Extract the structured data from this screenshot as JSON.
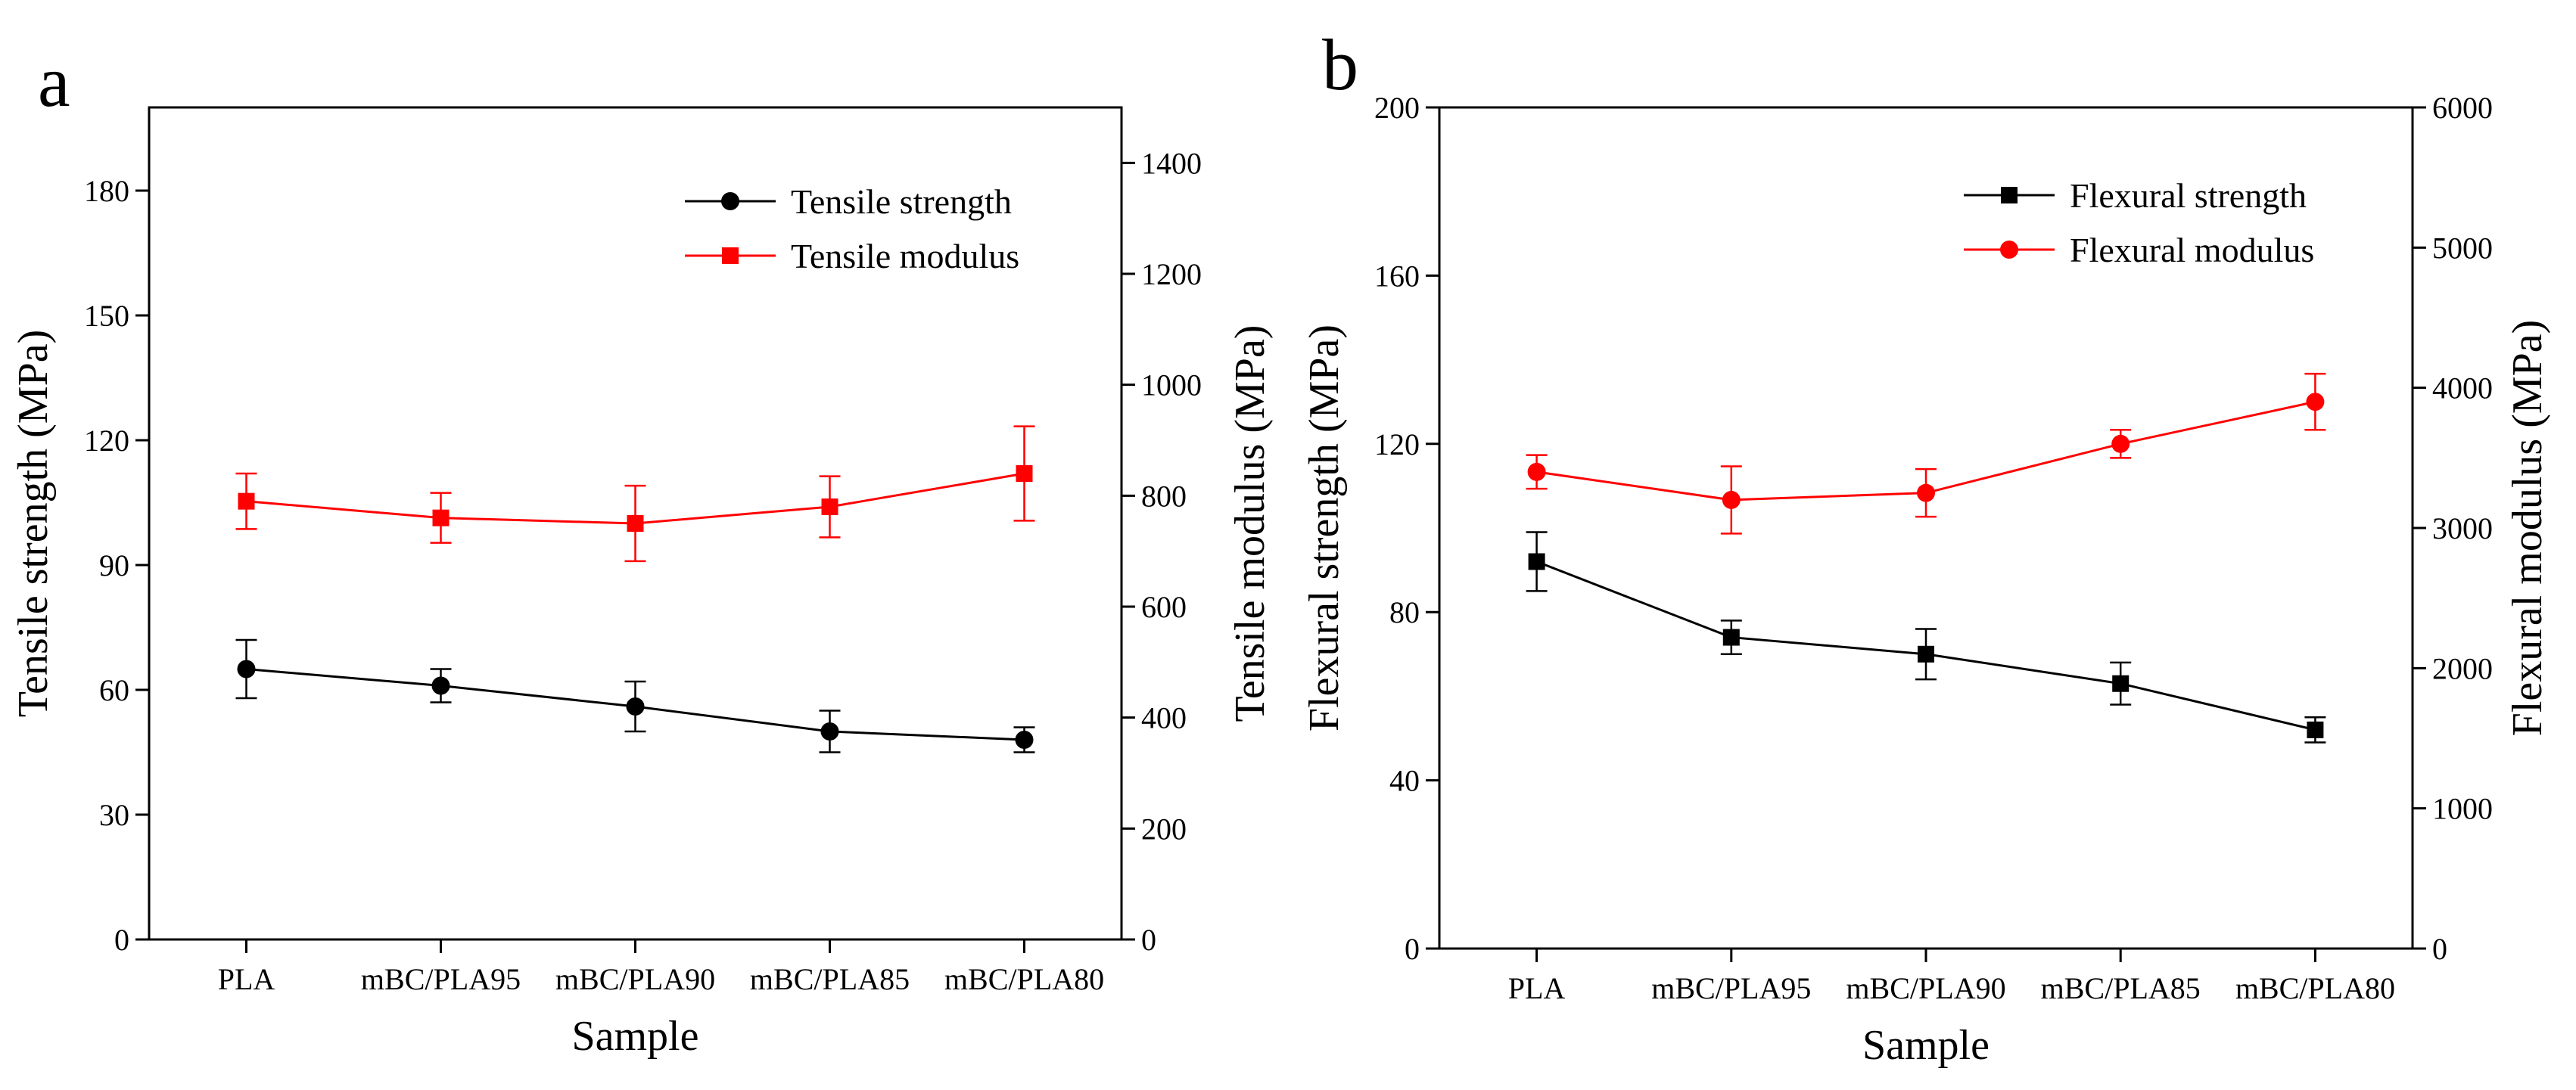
{
  "chart_data": [
    {
      "panel_label": "a",
      "type": "line",
      "categories": [
        "PLA",
        "mBC/PLA95",
        "mBC/PLA90",
        "mBC/PLA85",
        "mBC/PLA80"
      ],
      "xlabel": "Sample",
      "ylabel": "Tensile strength (MPa)",
      "y2label": "Tensile modulus (MPa)",
      "ylim": [
        0,
        200
      ],
      "yticks": [
        0,
        30,
        60,
        90,
        120,
        150,
        180
      ],
      "y2lim": [
        0,
        1500
      ],
      "y2ticks": [
        0,
        200,
        400,
        600,
        800,
        1000,
        1200,
        1400
      ],
      "legend_position": "top-right",
      "series": [
        {
          "name": "Tensile strength",
          "axis": "left",
          "marker": "circle",
          "color": "#000000",
          "values": [
            65,
            61,
            56,
            50,
            48
          ],
          "errors": [
            7,
            4,
            6,
            5,
            3
          ]
        },
        {
          "name": "Tensile modulus",
          "axis": "right",
          "marker": "square",
          "color": "#ff0000",
          "values": [
            790,
            760,
            750,
            780,
            840
          ],
          "errors": [
            50,
            45,
            68,
            55,
            85
          ]
        }
      ]
    },
    {
      "panel_label": "b",
      "type": "line",
      "categories": [
        "PLA",
        "mBC/PLA95",
        "mBC/PLA90",
        "mBC/PLA85",
        "mBC/PLA80"
      ],
      "xlabel": "Sample",
      "ylabel": "Flexural strength (MPa)",
      "y2label": "Flexural modulus (MPa)",
      "ylim": [
        0,
        200
      ],
      "yticks": [
        0,
        40,
        80,
        120,
        160,
        200
      ],
      "y2lim": [
        0,
        6000
      ],
      "y2ticks": [
        0,
        1000,
        2000,
        3000,
        4000,
        5000,
        6000
      ],
      "legend_position": "top-right",
      "series": [
        {
          "name": "Flexural strength",
          "axis": "left",
          "marker": "square",
          "color": "#000000",
          "values": [
            92,
            74,
            70,
            63,
            52
          ],
          "errors": [
            7,
            4,
            6,
            5,
            3
          ]
        },
        {
          "name": "Flexural modulus",
          "axis": "right",
          "marker": "circle",
          "color": "#ff0000",
          "values": [
            3400,
            3200,
            3250,
            3600,
            3900
          ],
          "errors": [
            120,
            240,
            170,
            100,
            200
          ]
        }
      ]
    }
  ]
}
